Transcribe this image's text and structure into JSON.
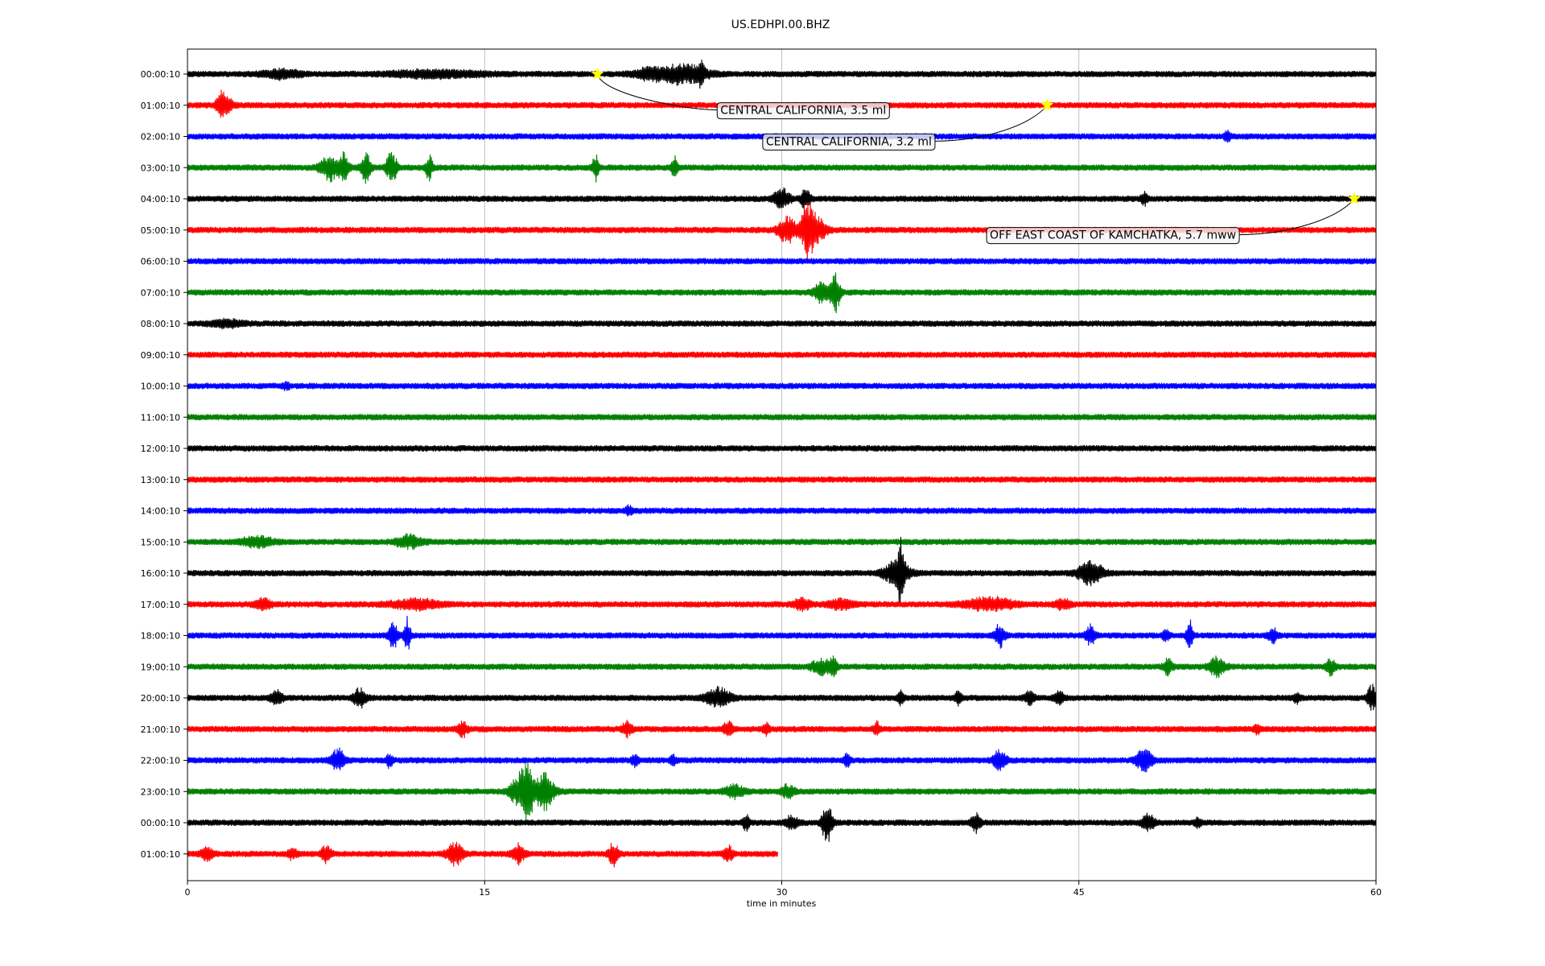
{
  "chart_data": {
    "type": "line",
    "title": "US.EDHPI.00.BHZ",
    "xlabel": "time in minutes",
    "xlim": [
      0,
      60
    ],
    "x_ticks": [
      0,
      15,
      30,
      45,
      60
    ],
    "grid": "vertical",
    "trace_colors": [
      "#000000",
      "#ff0000",
      "#0000ff",
      "#008000"
    ],
    "rows": [
      {
        "label": "00:00:10",
        "color": "#000000",
        "end": 60,
        "events": [
          [
            4.8,
            0.25,
            1.2
          ],
          [
            12.5,
            0.2,
            3.2
          ],
          [
            23.3,
            0.3,
            1.0
          ],
          [
            25,
            0.6,
            1.5
          ],
          [
            25.9,
            0.6,
            0.2
          ]
        ]
      },
      {
        "label": "01:00:10",
        "color": "#ff0000",
        "end": 60,
        "events": [
          [
            1.7,
            0.7,
            0.3
          ],
          [
            2.0,
            0.4,
            0.4
          ]
        ]
      },
      {
        "label": "02:00:10",
        "color": "#0000ff",
        "end": 60,
        "events": [
          [
            52.5,
            0.3,
            0.2
          ]
        ]
      },
      {
        "label": "03:00:10",
        "color": "#008000",
        "end": 60,
        "events": [
          [
            7.2,
            0.8,
            0.6
          ],
          [
            7.9,
            0.9,
            0.3
          ],
          [
            9,
            0.9,
            0.3
          ],
          [
            10.3,
            1.2,
            0.3
          ],
          [
            12.2,
            0.9,
            0.2
          ],
          [
            20.6,
            0.8,
            0.2
          ],
          [
            24.6,
            0.7,
            0.2
          ]
        ]
      },
      {
        "label": "04:00:10",
        "color": "#000000",
        "end": 60,
        "events": [
          [
            30,
            0.6,
            0.5
          ],
          [
            31.2,
            0.6,
            0.3
          ],
          [
            48.3,
            0.4,
            0.2
          ]
        ]
      },
      {
        "label": "05:00:10",
        "color": "#ff0000",
        "end": 60,
        "events": [
          [
            30.3,
            0.8,
            0.6
          ],
          [
            31.3,
            1.9,
            0.4
          ],
          [
            31.8,
            0.7,
            0.6
          ]
        ]
      },
      {
        "label": "06:00:10",
        "color": "#0000ff",
        "end": 60,
        "events": []
      },
      {
        "label": "07:00:10",
        "color": "#008000",
        "end": 60,
        "events": [
          [
            32,
            0.6,
            0.5
          ],
          [
            32.7,
            1.3,
            0.3
          ]
        ]
      },
      {
        "label": "08:00:10",
        "color": "#000000",
        "end": 60,
        "events": [
          [
            2,
            0.2,
            1.0
          ]
        ]
      },
      {
        "label": "09:00:10",
        "color": "#ff0000",
        "end": 60,
        "events": []
      },
      {
        "label": "10:00:10",
        "color": "#0000ff",
        "end": 60,
        "events": [
          [
            5,
            0.2,
            0.2
          ]
        ]
      },
      {
        "label": "11:00:10",
        "color": "#008000",
        "end": 60,
        "events": []
      },
      {
        "label": "12:00:10",
        "color": "#000000",
        "end": 60,
        "events": []
      },
      {
        "label": "13:00:10",
        "color": "#ff0000",
        "end": 60,
        "events": []
      },
      {
        "label": "14:00:10",
        "color": "#0000ff",
        "end": 60,
        "events": [
          [
            22.3,
            0.3,
            0.2
          ]
        ]
      },
      {
        "label": "15:00:10",
        "color": "#008000",
        "end": 60,
        "events": [
          [
            3.5,
            0.3,
            1.0
          ],
          [
            11.2,
            0.4,
            0.8
          ]
        ]
      },
      {
        "label": "16:00:10",
        "color": "#000000",
        "end": 60,
        "events": [
          [
            35.8,
            0.8,
            0.8
          ],
          [
            36,
            1.9,
            0.2
          ],
          [
            45.6,
            0.7,
            0.8
          ]
        ]
      },
      {
        "label": "17:00:10",
        "color": "#ff0000",
        "end": 60,
        "events": [
          [
            3.8,
            0.35,
            0.5
          ],
          [
            11.5,
            0.3,
            1.5
          ],
          [
            31,
            0.4,
            0.5
          ],
          [
            33,
            0.3,
            0.8
          ],
          [
            40.5,
            0.4,
            1.5
          ],
          [
            44.2,
            0.3,
            0.5
          ]
        ]
      },
      {
        "label": "18:00:10",
        "color": "#0000ff",
        "end": 60,
        "events": [
          [
            10.4,
            0.8,
            0.3
          ],
          [
            11.1,
            1.1,
            0.2
          ],
          [
            41,
            0.8,
            0.3
          ],
          [
            45.6,
            0.6,
            0.3
          ],
          [
            49.4,
            0.4,
            0.2
          ],
          [
            50.6,
            1.0,
            0.2
          ],
          [
            54.8,
            0.4,
            0.3
          ]
        ]
      },
      {
        "label": "19:00:10",
        "color": "#008000",
        "end": 60,
        "events": [
          [
            32,
            0.5,
            0.6
          ],
          [
            32.6,
            0.7,
            0.2
          ],
          [
            49.5,
            0.5,
            0.3
          ],
          [
            52,
            0.6,
            0.5
          ],
          [
            57.7,
            0.5,
            0.3
          ]
        ]
      },
      {
        "label": "20:00:10",
        "color": "#000000",
        "end": 60,
        "events": [
          [
            4.5,
            0.4,
            0.4
          ],
          [
            8.7,
            0.6,
            0.4
          ],
          [
            26.8,
            0.6,
            0.8
          ],
          [
            36,
            0.4,
            0.2
          ],
          [
            38.9,
            0.4,
            0.2
          ],
          [
            42.5,
            0.4,
            0.3
          ],
          [
            44,
            0.4,
            0.3
          ],
          [
            56,
            0.3,
            0.2
          ],
          [
            59.8,
            0.8,
            0.3
          ]
        ]
      },
      {
        "label": "21:00:10",
        "color": "#ff0000",
        "end": 60,
        "events": [
          [
            13.9,
            0.5,
            0.3
          ],
          [
            22.2,
            0.5,
            0.3
          ],
          [
            27.3,
            0.5,
            0.3
          ],
          [
            29.2,
            0.4,
            0.2
          ],
          [
            34.8,
            0.4,
            0.2
          ],
          [
            54,
            0.3,
            0.2
          ]
        ]
      },
      {
        "label": "22:00:10",
        "color": "#0000ff",
        "end": 60,
        "events": [
          [
            7.6,
            0.7,
            0.4
          ],
          [
            10.2,
            0.4,
            0.2
          ],
          [
            22.6,
            0.4,
            0.2
          ],
          [
            24.5,
            0.3,
            0.2
          ],
          [
            33.3,
            0.4,
            0.2
          ],
          [
            41,
            0.6,
            0.4
          ],
          [
            48.3,
            0.7,
            0.5
          ]
        ]
      },
      {
        "label": "23:00:10",
        "color": "#008000",
        "end": 60,
        "events": [
          [
            16.8,
            1.1,
            0.6
          ],
          [
            17.2,
            1.6,
            0.3
          ],
          [
            18,
            1.2,
            0.6
          ],
          [
            27.6,
            0.4,
            0.6
          ],
          [
            30.3,
            0.4,
            0.4
          ]
        ]
      },
      {
        "label": "00:00:10",
        "color": "#000000",
        "end": 60,
        "events": [
          [
            28.2,
            0.5,
            0.2
          ],
          [
            30.5,
            0.4,
            0.4
          ],
          [
            32.3,
            1.5,
            0.3
          ],
          [
            39.8,
            0.6,
            0.3
          ],
          [
            48.5,
            0.5,
            0.4
          ],
          [
            51,
            0.3,
            0.2
          ]
        ]
      },
      {
        "label": "01:00:10",
        "color": "#ff0000",
        "end": 29.8,
        "events": [
          [
            1,
            0.4,
            0.4
          ],
          [
            5.3,
            0.3,
            0.3
          ],
          [
            7,
            0.5,
            0.3
          ],
          [
            13.5,
            0.7,
            0.5
          ],
          [
            16.7,
            0.6,
            0.4
          ],
          [
            21.5,
            0.7,
            0.3
          ],
          [
            27.3,
            0.5,
            0.3
          ]
        ]
      }
    ],
    "annotations": [
      {
        "text": "CENTRAL CALIFORNIA, 3.5 ml",
        "row": 0,
        "x": 20.7,
        "marker": "star",
        "marker_color": "#ffff00",
        "label_x": 26.7,
        "label_row": 1.15,
        "label_bg": "#f5f5f5"
      },
      {
        "text": "CENTRAL CALIFORNIA, 3.2 ml",
        "row": 1,
        "x": 43.4,
        "marker": "star",
        "marker_color": "#ffff00",
        "label_x": 29.0,
        "label_row": 2.15,
        "label_bg": "#f5f5f5"
      },
      {
        "text": "OFF EAST COAST OF KAMCHATKA, 5.7 mww",
        "row": 4,
        "x": 58.9,
        "marker": "star",
        "marker_color": "#ffff00",
        "label_x": 40.3,
        "label_row": 5.15,
        "label_bg": "#f5f5f5"
      }
    ]
  }
}
